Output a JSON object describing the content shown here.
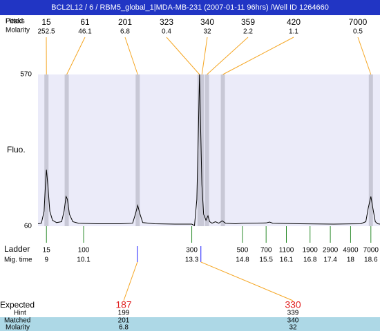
{
  "chart_data": {
    "type": "electropherogram",
    "title": "BCL2L12 / 6 / RBM5_global_1|MDA-MB-231 (2007-01-11 96hrs) /Well ID 1264660",
    "peak_row_labels": [
      "Fitted",
      "Peaks"
    ],
    "peak_molarity_label": "Molarity",
    "peaks": {
      "sizes": [
        15,
        61,
        201,
        323,
        340,
        359,
        420,
        7000
      ],
      "molarity": [
        252.5,
        46.1,
        6.8,
        0.4,
        32,
        2.2,
        1.1,
        0.5
      ],
      "times": [
        9.0,
        9.6,
        11.7,
        13.53,
        13.6,
        13.75,
        14.22,
        18.6
      ]
    },
    "y_label": "Fluo.",
    "ylim": [
      60,
      570
    ],
    "yticks": [
      570,
      60
    ],
    "xlim": [
      8.75,
      18.87
    ],
    "trace": {
      "x": [
        8.75,
        8.85,
        8.93,
        8.97,
        9.0,
        9.04,
        9.1,
        9.18,
        9.3,
        9.45,
        9.52,
        9.58,
        9.62,
        9.68,
        9.78,
        9.95,
        10.5,
        11.2,
        11.55,
        11.63,
        11.7,
        11.77,
        11.85,
        12.2,
        12.8,
        13.3,
        13.38,
        13.45,
        13.5,
        13.53,
        13.56,
        13.6,
        13.65,
        13.72,
        13.78,
        13.83,
        13.9,
        14.0,
        14.1,
        14.2,
        14.3,
        14.6,
        14.8,
        15.5,
        15.6,
        15.7,
        16.5,
        17.5,
        18.3,
        18.45,
        18.52,
        18.6,
        18.66,
        18.73,
        18.8,
        18.87
      ],
      "values": [
        68,
        70,
        110,
        200,
        250,
        200,
        110,
        80,
        72,
        75,
        110,
        160,
        150,
        100,
        75,
        70,
        68,
        68,
        70,
        100,
        130,
        100,
        72,
        68,
        67,
        67,
        62,
        150,
        400,
        570,
        400,
        200,
        100,
        80,
        95,
        75,
        70,
        75,
        70,
        78,
        70,
        68,
        70,
        71,
        74,
        70,
        68,
        67,
        68,
        75,
        120,
        160,
        120,
        75,
        68,
        67
      ]
    },
    "ladder": {
      "label": "Ladder",
      "time_label": "Mig. time",
      "sizes": [
        15,
        100,
        300,
        500,
        700,
        1100,
        1900,
        2900,
        4900,
        7000
      ],
      "times": [
        9,
        10.1,
        13.3,
        14.8,
        15.5,
        16.1,
        16.8,
        17.4,
        18,
        18.6
      ]
    },
    "expected": {
      "label": "Expected",
      "values": [
        187,
        330
      ],
      "times": [
        11.69,
        13.57
      ],
      "hint_label": "Hint",
      "hint": [
        199,
        339
      ],
      "matched_label": "Matched",
      "matched": [
        201,
        340
      ],
      "molarity_label": "Molarity",
      "molarity": [
        6.8,
        32
      ]
    }
  }
}
